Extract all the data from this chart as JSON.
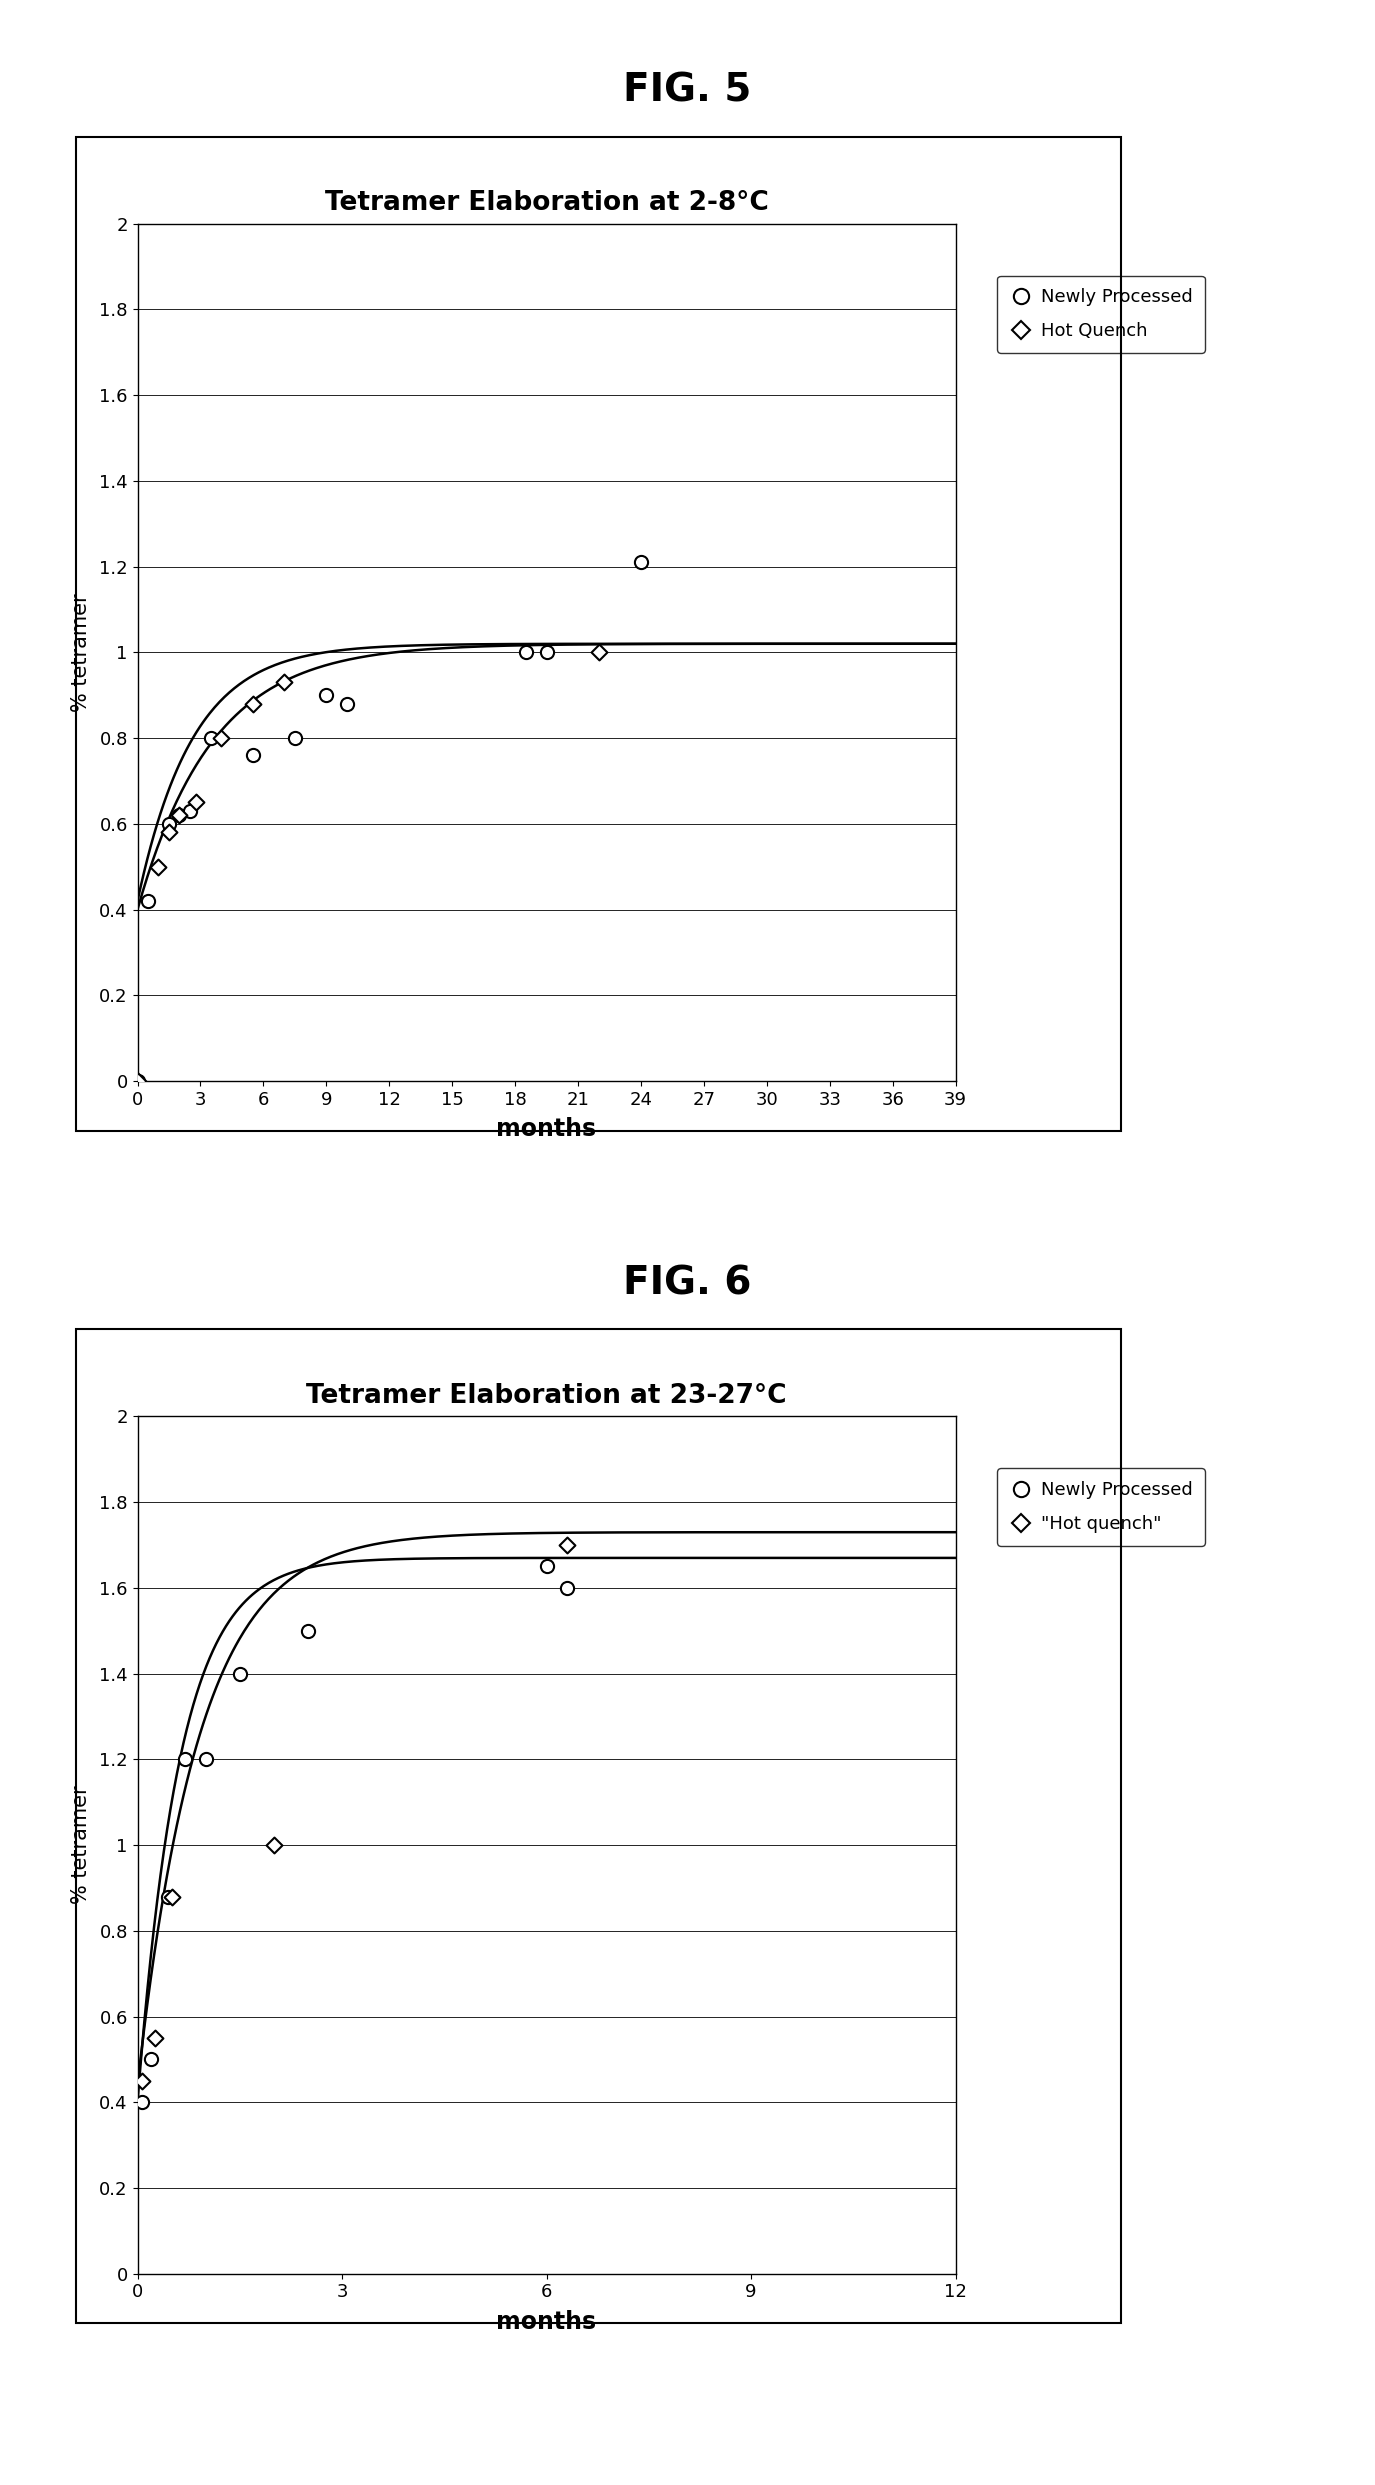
{
  "fig5": {
    "title": "Tetramer Elaboration at 2-8°C",
    "xlabel": "months",
    "ylabel": "% tetramer",
    "xlim": [
      0,
      39
    ],
    "ylim": [
      0,
      2
    ],
    "xticks": [
      0,
      3,
      6,
      9,
      12,
      15,
      18,
      21,
      24,
      27,
      30,
      33,
      36,
      39
    ],
    "ytick_vals": [
      0,
      0.2,
      0.4,
      0.6,
      0.8,
      1.0,
      1.2,
      1.4,
      1.6,
      1.8,
      2.0
    ],
    "ytick_labels": [
      "0",
      "0.2",
      "0.4",
      "0.6",
      "0.8",
      "1",
      "1.2",
      "1.4",
      "1.6",
      "1.8",
      "2"
    ],
    "newly_processed_x": [
      0,
      0.5,
      1.5,
      2.0,
      2.5,
      3.5,
      5.5,
      7.5,
      9.0,
      10.0,
      18.5,
      19.5,
      24.0
    ],
    "newly_processed_y": [
      0.0,
      0.42,
      0.6,
      0.62,
      0.63,
      0.8,
      0.76,
      0.8,
      0.9,
      0.88,
      1.0,
      1.0,
      1.21
    ],
    "hot_quench_x": [
      0,
      1.0,
      1.5,
      2.0,
      2.8,
      4.0,
      5.5,
      7.0,
      22.0
    ],
    "hot_quench_y": [
      0.0,
      0.5,
      0.58,
      0.62,
      0.65,
      0.8,
      0.88,
      0.93,
      1.0
    ],
    "curve_np_a": 0.4,
    "curve_np_b": 1.02,
    "curve_np_k": 0.28,
    "curve_hq_a": 0.42,
    "curve_hq_b": 1.02,
    "curve_hq_k": 0.38,
    "legend1": "Newly Processed",
    "legend2": "Hot Quench",
    "fig_label": "FIG. 5"
  },
  "fig6": {
    "title": "Tetramer Elaboration at 23-27°C",
    "xlabel": "months",
    "ylabel": "% tetramer",
    "xlim": [
      0,
      12
    ],
    "ylim": [
      0,
      2
    ],
    "xticks": [
      0,
      3,
      6,
      9,
      12
    ],
    "ytick_vals": [
      0,
      0.2,
      0.4,
      0.6,
      0.8,
      1.0,
      1.2,
      1.4,
      1.6,
      1.8,
      2.0
    ],
    "ytick_labels": [
      "0",
      "0.2",
      "0.4",
      "0.6",
      "0.8",
      "1",
      "1.2",
      "1.4",
      "1.6",
      "1.8",
      "2"
    ],
    "newly_processed_x": [
      0.07,
      0.2,
      0.45,
      0.7,
      1.0,
      1.5,
      2.5,
      6.0,
      6.3
    ],
    "newly_processed_y": [
      0.4,
      0.5,
      0.88,
      1.2,
      1.2,
      1.4,
      1.5,
      1.65,
      1.6
    ],
    "hot_quench_x": [
      0.07,
      0.25,
      0.5,
      2.0,
      6.3
    ],
    "hot_quench_y": [
      0.45,
      0.55,
      0.88,
      1.0,
      1.7
    ],
    "curve_np_a": 0.4,
    "curve_np_b": 1.67,
    "curve_np_k": 1.6,
    "curve_hq_a": 0.44,
    "curve_hq_b": 1.73,
    "curve_hq_k": 1.1,
    "legend1": "Newly Processed",
    "legend2": "\"Hot quench\"",
    "fig_label": "FIG. 6"
  },
  "background_color": "#ffffff"
}
